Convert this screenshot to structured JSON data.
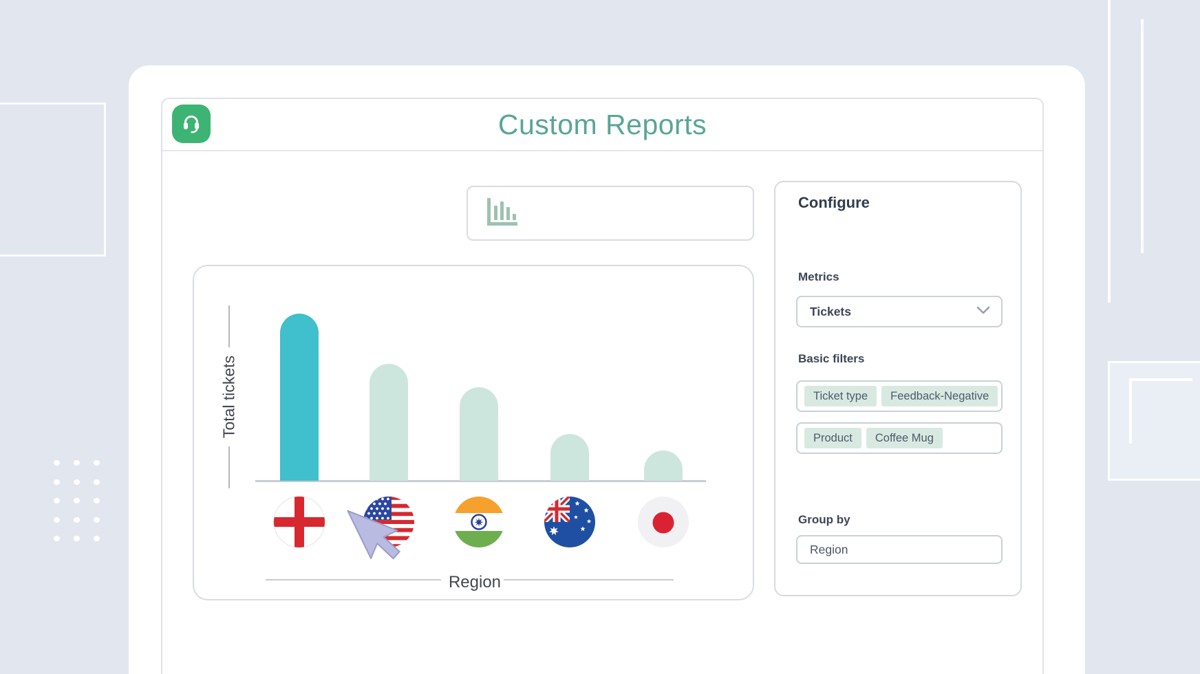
{
  "page": {
    "background_color": "#e2e6ef"
  },
  "header": {
    "title": "Custom Reports",
    "title_color": "#57a697",
    "app_icon": "headset-icon",
    "app_icon_color": "#3db473"
  },
  "chart_selector": {
    "icon": "bar-chart-icon"
  },
  "chart_data": {
    "type": "bar",
    "title": "Custom Reports",
    "xlabel": "Region",
    "ylabel": "Total tickets",
    "categories": [
      "England",
      "United States",
      "India",
      "Australia",
      "Japan"
    ],
    "flag_icons": [
      "england-flag",
      "usa-flag",
      "india-flag",
      "australia-flag",
      "japan-flag"
    ],
    "series": [
      {
        "name": "Total tickets",
        "values": [
          100,
          70,
          56,
          28,
          18
        ]
      }
    ],
    "value_scale": "relative bar heights, no numeric ticks shown",
    "highlighted_index": 0,
    "highlight_color": "#40bfcc",
    "muted_color": "#cde6dd",
    "axis_color": "#b4b8be",
    "grid": false,
    "legend": false
  },
  "configure_panel": {
    "title": "Configure",
    "metrics_label": "Metrics",
    "metrics_value": "Tickets",
    "basic_filters_label": "Basic filters",
    "filters": [
      {
        "field": "Ticket type",
        "value": "Feedback-Negative"
      },
      {
        "field": "Product",
        "value": "Coffee Mug"
      }
    ],
    "group_by_label": "Group by",
    "group_by_value": "Region"
  }
}
